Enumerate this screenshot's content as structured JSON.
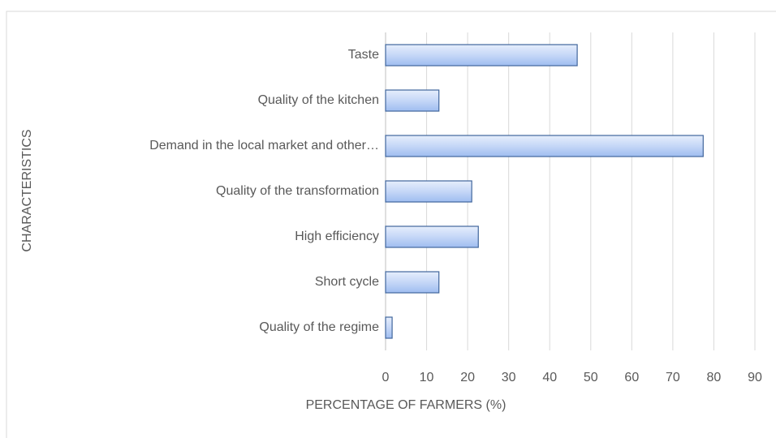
{
  "chart_data": {
    "type": "bar",
    "orientation": "horizontal",
    "categories": [
      "Taste",
      "Quality of the kitchen",
      "Demand in the local market and other…",
      "Quality of the transformation",
      "High efficiency",
      "Short cycle",
      "Quality of the regime"
    ],
    "values": [
      46.7,
      13,
      77.4,
      21,
      22.6,
      13,
      1.6
    ],
    "color": "#c5d7f7",
    "edge_color": "#41669c",
    "xlabel": "PERCENTAGE OF FARMERS (%)",
    "ylabel": "CHARACTERISTICS",
    "xlim": [
      0,
      90
    ],
    "xticks": [
      0,
      10,
      20,
      30,
      40,
      50,
      60,
      70,
      80,
      90
    ],
    "grid": true
  }
}
